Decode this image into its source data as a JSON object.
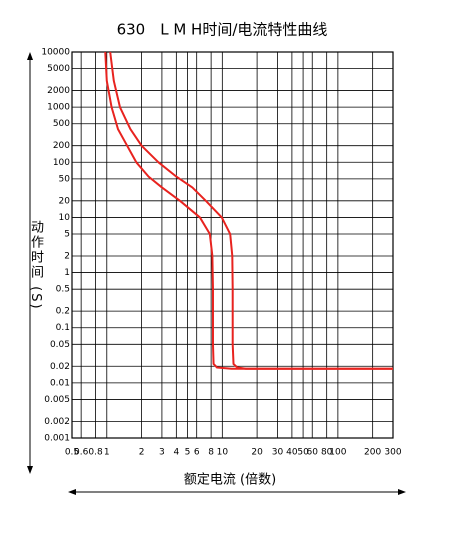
{
  "chart_data": {
    "type": "line",
    "title": "630　L M H时间/电流特性曲线",
    "x_label": "额定电流 (倍数)",
    "y_label": "动作时间 (S)",
    "log_x": true,
    "log_y": true,
    "grid": true,
    "xlim": [
      0.5,
      300
    ],
    "ylim": [
      0.001,
      10000
    ],
    "xticks": [
      0.5,
      0.6,
      0.8,
      1,
      2,
      3,
      4,
      5,
      6,
      8,
      10,
      20,
      30,
      40,
      50,
      60,
      80,
      100,
      200,
      300
    ],
    "yticks": [
      10000,
      5000,
      2000,
      1000,
      500,
      200,
      100,
      50,
      20,
      10,
      5,
      2,
      1,
      0.5,
      0.2,
      0.1,
      0.05,
      0.02,
      0.01,
      0.005,
      0.002,
      0.001
    ],
    "series": [
      {
        "color": "#e8231f",
        "x": [
          0.97,
          1.0,
          1.1,
          1.25,
          1.5,
          1.8,
          2.3,
          3,
          4.3,
          6.4,
          7.8,
          8.2,
          8.3,
          8.3,
          8.4,
          9,
          12,
          300
        ],
        "values": [
          10000,
          3000,
          1000,
          400,
          200,
          100,
          55,
          35,
          20,
          10,
          5,
          2,
          0.5,
          0.05,
          0.022,
          0.019,
          0.018,
          0.018
        ]
      },
      {
        "color": "#e8231f",
        "x": [
          1.07,
          1.15,
          1.3,
          1.6,
          2,
          2.8,
          4,
          5.5,
          7.2,
          9.9,
          11.7,
          12.2,
          12.3,
          12.3,
          12.5,
          13.5,
          16,
          300
        ],
        "values": [
          10000,
          3000,
          1000,
          400,
          200,
          100,
          55,
          35,
          20,
          10,
          5,
          2,
          0.5,
          0.05,
          0.022,
          0.019,
          0.018,
          0.018
        ]
      }
    ]
  }
}
